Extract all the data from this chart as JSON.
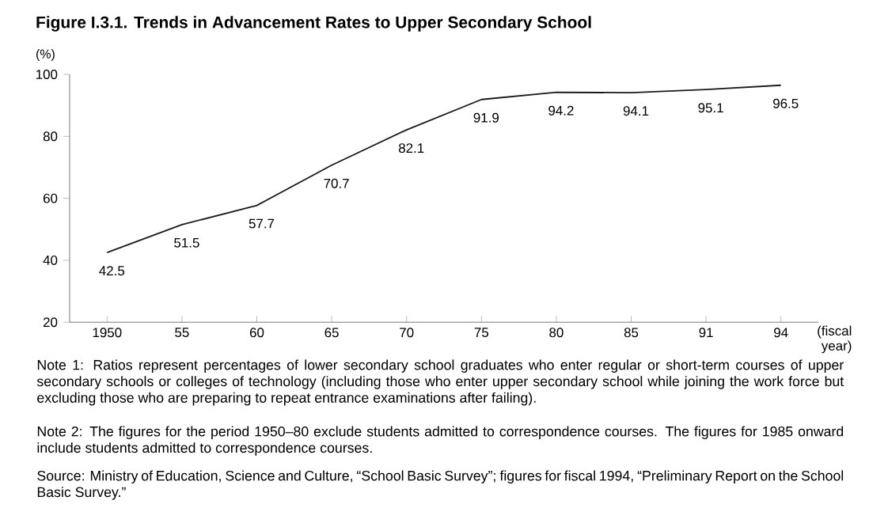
{
  "chart_data": {
    "type": "line",
    "title": "Figure I.3.1. Trends in Advancement Rates to Upper Secondary School",
    "ylabel": "(%)",
    "xlabel": "(fiscal year)",
    "categories": [
      "1950",
      "55",
      "60",
      "65",
      "70",
      "75",
      "80",
      "85",
      "91",
      "94"
    ],
    "values": [
      42.5,
      51.5,
      57.7,
      70.7,
      82.1,
      91.9,
      94.2,
      94.1,
      95.1,
      96.5
    ],
    "color": "#1a1a1a",
    "ylim": [
      20,
      100
    ],
    "yticks": [
      20,
      40,
      60,
      80,
      100
    ],
    "grid": false,
    "marker": "none",
    "line_style": "solid",
    "data_labels": true,
    "annotations": [
      "Note 1: Ratios represent percentages of lower secondary school graduates who enter regular or short-term courses of upper secondary schools or colleges of technology (including those who enter upper secondary school while joining the work force but excluding those who are preparing to repeat entrance examinations after failing).",
      "Note 2: The figures for the period 1950–80 exclude students admitted to correspondence courses. The figures for 1985 onward include students admitted to correspondence courses.",
      "Source: Ministry of Education, Science and Culture, “School Basic Survey”; figures for fiscal 1994, “Preliminary Report on the School Basic Survey.”"
    ]
  }
}
